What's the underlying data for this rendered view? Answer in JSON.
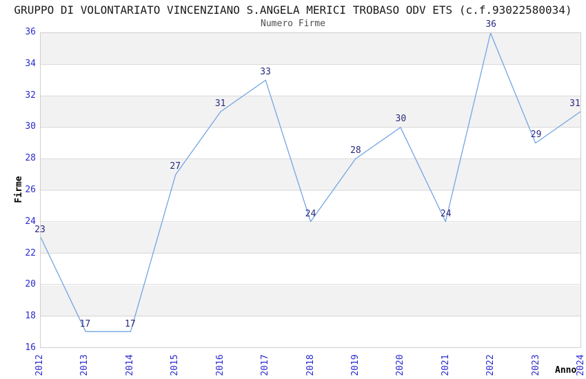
{
  "title": "GRUPPO DI VOLONTARIATO VINCENZIANO S.ANGELA MERICI TROBASO ODV ETS (c.f.93022580034)",
  "subtitle": "Numero Firme",
  "chart_data": {
    "type": "line",
    "x": [
      "2012",
      "2013",
      "2014",
      "2015",
      "2016",
      "2017",
      "2018",
      "2019",
      "2020",
      "2021",
      "2022",
      "2023",
      "2024"
    ],
    "series": [
      {
        "name": "Numero Firme",
        "values": [
          23,
          17,
          17,
          27,
          31,
          33,
          24,
          28,
          30,
          24,
          36,
          29,
          31
        ]
      }
    ],
    "title": "GRUPPO DI VOLONTARIATO VINCENZIANO S.ANGELA MERICI TROBASO ODV ETS (c.f.93022580034)",
    "subtitle": "Numero Firme",
    "xlabel": "Anno",
    "ylabel": "Firme",
    "ylim": [
      16,
      36
    ],
    "ytick_step": 2,
    "yticks": [
      16,
      18,
      20,
      22,
      24,
      26,
      28,
      30,
      32,
      34,
      36
    ],
    "grid": "horizontal-bands",
    "legend_position": "none",
    "data_labels_visible": true
  },
  "colors": {
    "line": "#72a5e2",
    "tick_label": "#2a2ad0",
    "data_label": "#2a2a80",
    "band_gray": "#f2f2f2",
    "band_white": "#ffffff",
    "grid_line": "#dadada",
    "plot_border": "#cfcfcf",
    "title_text": "#1a1a1a",
    "subtitle_text": "#4d4d4d",
    "axis_label_text": "#000000"
  }
}
